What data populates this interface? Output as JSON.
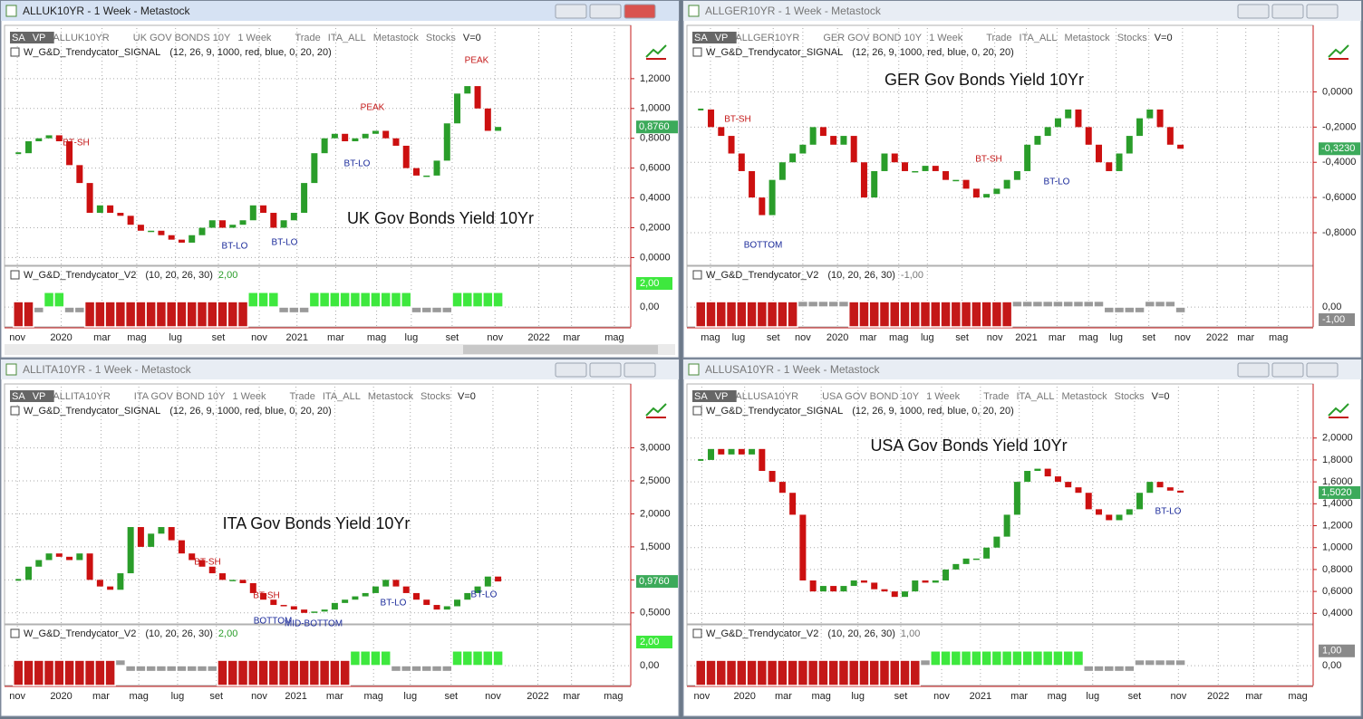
{
  "style": {
    "up": "#2a9d2a",
    "down": "#cc1010",
    "ind_neg": "#c41818",
    "ind_pos": "#3ee83e",
    "ind_mid": "#9a9a9a",
    "price_box": "#3caa5a"
  },
  "windows": [
    {
      "title": "ALLUK10YR - 1 Week - Metastock",
      "active": true,
      "toolbar": [
        "SA",
        "VP",
        "ALLUK10YR",
        "UK GOV BONDS 10Y",
        "1 Week",
        "Trade",
        "ITA_ALL",
        "Metastock",
        "Stocks",
        "V=0"
      ],
      "signal": {
        "name": "W_G&D_Trendycator_SIGNAL",
        "params": "(12, 26, 9, 1000, red, blue, 0, 20, 20)"
      },
      "chart_title": "UK Gov Bonds Yield 10Yr",
      "xlim": [
        -1,
        60
      ],
      "xticks": [
        {
          "value": -0.1,
          "label": "nov"
        },
        {
          "value": 4.2,
          "label": "2020"
        },
        {
          "value": 8.2,
          "label": "mar"
        },
        {
          "value": 11.6,
          "label": "mag"
        },
        {
          "value": 15.4,
          "label": "lug"
        },
        {
          "value": 19.6,
          "label": "set"
        },
        {
          "value": 23.6,
          "label": "nov"
        },
        {
          "value": 27.3,
          "label": "2021"
        },
        {
          "value": 31.1,
          "label": "mar"
        },
        {
          "value": 35.1,
          "label": "mag"
        },
        {
          "value": 38.5,
          "label": "lug"
        },
        {
          "value": 42.5,
          "label": "set"
        },
        {
          "value": 46.7,
          "label": "nov"
        },
        {
          "value": 51.0,
          "label": "2022"
        },
        {
          "value": 54.2,
          "label": "mar"
        },
        {
          "value": 58.4,
          "label": "mag"
        }
      ],
      "ylim": [
        -0.04,
        1.43
      ],
      "yticks": [
        {
          "value": 0,
          "label": "0,0000"
        },
        {
          "value": 0.2,
          "label": "0,2000"
        },
        {
          "value": 0.4,
          "label": "0,4000"
        },
        {
          "value": 0.6,
          "label": "0,6000"
        },
        {
          "value": 0.8,
          "label": "0,8000"
        },
        {
          "value": 1.0,
          "label": "1,0000"
        },
        {
          "value": 1.2,
          "label": "1,2000"
        }
      ],
      "closes": [
        0.7,
        0.78,
        0.8,
        0.82,
        0.78,
        0.62,
        0.5,
        0.3,
        0.35,
        0.3,
        0.28,
        0.22,
        0.18,
        0.18,
        0.15,
        0.12,
        0.1,
        0.15,
        0.2,
        0.25,
        0.2,
        0.22,
        0.25,
        0.35,
        0.3,
        0.2,
        0.25,
        0.3,
        0.5,
        0.7,
        0.8,
        0.83,
        0.78,
        0.8,
        0.83,
        0.85,
        0.8,
        0.75,
        0.6,
        0.55,
        0.55,
        0.65,
        0.9,
        1.1,
        1.15,
        1.0,
        0.85,
        0.876
      ],
      "last": {
        "value": 0.876,
        "label": "0,8760"
      },
      "annotations": [
        {
          "text": "BT-SH",
          "color": "#c41818"
        },
        {
          "text": "PEAK",
          "color": "#c41818"
        },
        {
          "text": "PEAK",
          "color": "#c41818"
        },
        {
          "text": "BT-LO",
          "color": "#1a2a9a"
        },
        {
          "text": "BT-LO",
          "color": "#1a2a9a"
        },
        {
          "text": "BT-LO",
          "color": "#1a2a9a"
        }
      ],
      "indicator": {
        "name": "W_G&D_Trendycator_V2",
        "params": "(10, 20, 26, 30)",
        "last": {
          "value": 2,
          "label": "2,00"
        },
        "last_color": "#3ee83e",
        "ylim": [
          -1.1,
          1.6
        ],
        "yticks": [
          {
            "value": 0,
            "label": "0,00"
          }
        ],
        "values": [
          -1,
          -1,
          -0.4,
          1,
          1,
          -0.4,
          -0.4,
          -1,
          -1,
          -1,
          -1,
          -1,
          -1,
          -1,
          -1,
          -1,
          -1,
          -1,
          -1,
          -1,
          -1,
          -1,
          -1,
          1,
          1,
          1,
          -0.4,
          -0.4,
          -0.4,
          1,
          1,
          1,
          1,
          1,
          1,
          1,
          1,
          1,
          1,
          -0.4,
          -0.4,
          -0.4,
          -0.4,
          1,
          1,
          1,
          1,
          1
        ]
      }
    },
    {
      "title": "ALLGER10YR - 1 Week - Metastock",
      "active": false,
      "toolbar": [
        "SA",
        "VP",
        "ALLGER10YR",
        "GER GOV BOND 10Y",
        "1 Week",
        "Trade",
        "ITA_ALL",
        "Metastock",
        "Stocks",
        "V=0"
      ],
      "signal": {
        "name": "W_G&D_Trendycator_SIGNAL",
        "params": "(12, 26, 9, 1000, red, blue, 0, 20, 20)"
      },
      "chart_title": "GER Gov Bonds Yield 10Yr",
      "xlim": [
        -1,
        60
      ],
      "xticks": [
        {
          "value": 0.95,
          "label": "mag"
        },
        {
          "value": 3.7,
          "label": "lug"
        },
        {
          "value": 7.1,
          "label": "set"
        },
        {
          "value": 10.0,
          "label": "nov"
        },
        {
          "value": 13.4,
          "label": "2020"
        },
        {
          "value": 16.4,
          "label": "mar"
        },
        {
          "value": 19.4,
          "label": "mag"
        },
        {
          "value": 22.2,
          "label": "lug"
        },
        {
          "value": 25.6,
          "label": "set"
        },
        {
          "value": 28.8,
          "label": "nov"
        },
        {
          "value": 31.9,
          "label": "2021"
        },
        {
          "value": 34.9,
          "label": "mar"
        },
        {
          "value": 38.0,
          "label": "mag"
        },
        {
          "value": 40.7,
          "label": "lug"
        },
        {
          "value": 43.9,
          "label": "set"
        },
        {
          "value": 47.2,
          "label": "nov"
        },
        {
          "value": 50.6,
          "label": "2022"
        },
        {
          "value": 53.4,
          "label": "mar"
        },
        {
          "value": 56.6,
          "label": "mag"
        }
      ],
      "ylim": [
        -0.975,
        0.27
      ],
      "yticks": [
        {
          "value": -0.8,
          "label": "-0,8000"
        },
        {
          "value": -0.6,
          "label": "-0,6000"
        },
        {
          "value": -0.4,
          "label": "-0,4000"
        },
        {
          "value": -0.2,
          "label": "-0,2000"
        },
        {
          "value": 0,
          "label": "0,0000"
        }
      ],
      "closes": [
        -0.1,
        -0.2,
        -0.25,
        -0.35,
        -0.45,
        -0.6,
        -0.7,
        -0.5,
        -0.4,
        -0.35,
        -0.3,
        -0.2,
        -0.25,
        -0.3,
        -0.25,
        -0.4,
        -0.6,
        -0.45,
        -0.35,
        -0.4,
        -0.45,
        -0.45,
        -0.42,
        -0.45,
        -0.5,
        -0.5,
        -0.55,
        -0.6,
        -0.58,
        -0.55,
        -0.5,
        -0.45,
        -0.3,
        -0.25,
        -0.2,
        -0.15,
        -0.1,
        -0.2,
        -0.3,
        -0.4,
        -0.45,
        -0.35,
        -0.25,
        -0.15,
        -0.1,
        -0.2,
        -0.3,
        -0.323
      ],
      "last": {
        "value": -0.323,
        "label": "-0,3230"
      },
      "annotations": [
        {
          "text": "BT-SH",
          "color": "#c41818"
        },
        {
          "text": "BT-SH",
          "color": "#c41818"
        },
        {
          "text": "BT-LO",
          "color": "#1a2a9a"
        },
        {
          "text": "BOTTOM",
          "color": "#1a2a9a"
        }
      ],
      "indicator": {
        "name": "W_G&D_Trendycator_V2",
        "params": "(10, 20, 26, 30)",
        "last": {
          "value": -1,
          "label": "-1,00"
        },
        "last_color": "#8a8a8a",
        "ylim": [
          -1.1,
          1.6
        ],
        "yticks": [
          {
            "value": 0,
            "label": "0,00"
          }
        ],
        "values": [
          -1,
          -1,
          -1,
          -1,
          -1,
          -1,
          -1,
          -1,
          -1,
          -1,
          0.4,
          0.4,
          0.4,
          0.4,
          0.4,
          -1,
          -1,
          -1,
          -1,
          -1,
          -1,
          -1,
          -1,
          -1,
          -1,
          -1,
          -1,
          -1,
          -1,
          -1,
          -1,
          0.4,
          0.4,
          0.4,
          0.4,
          0.4,
          0.4,
          0.4,
          0.4,
          0.4,
          -0.4,
          -0.4,
          -0.4,
          -0.4,
          0.4,
          0.4,
          0.4,
          -0.4
        ]
      }
    },
    {
      "title": "ALLITA10YR - 1 Week - Metastock",
      "active": false,
      "toolbar": [
        "SA",
        "VP",
        "ALLITA10YR",
        "ITA GOV BOND 10Y",
        "1 Week",
        "Trade",
        "ITA_ALL",
        "Metastock",
        "Stocks",
        "V=0"
      ],
      "signal": {
        "name": "W_G&D_Trendycator_SIGNAL",
        "params": "(12, 26, 9, 1000, red, blue, 0, 20, 20)"
      },
      "chart_title": "ITA Gov Bonds Yield 10Yr",
      "xlim": [
        -1,
        60
      ],
      "xticks": [
        {
          "value": -0.1,
          "label": "nov"
        },
        {
          "value": 4.2,
          "label": "2020"
        },
        {
          "value": 8.1,
          "label": "mar"
        },
        {
          "value": 11.8,
          "label": "mag"
        },
        {
          "value": 15.6,
          "label": "lug"
        },
        {
          "value": 19.4,
          "label": "set"
        },
        {
          "value": 23.6,
          "label": "nov"
        },
        {
          "value": 27.2,
          "label": "2021"
        },
        {
          "value": 31.0,
          "label": "mar"
        },
        {
          "value": 34.8,
          "label": "mag"
        },
        {
          "value": 38.4,
          "label": "lug"
        },
        {
          "value": 42.4,
          "label": "set"
        },
        {
          "value": 46.5,
          "label": "nov"
        },
        {
          "value": 50.9,
          "label": "2022"
        },
        {
          "value": 54.2,
          "label": "mar"
        },
        {
          "value": 58.3,
          "label": "mag"
        }
      ],
      "ylim": [
        0.36,
        3.68
      ],
      "yticks": [
        {
          "value": 0.5,
          "label": "0,5000"
        },
        {
          "value": 1.0,
          "label": "1,0000"
        },
        {
          "value": 1.5,
          "label": "1,5000"
        },
        {
          "value": 2.0,
          "label": "2,0000"
        },
        {
          "value": 2.5,
          "label": "2,5000"
        },
        {
          "value": 3.0,
          "label": "3,0000"
        }
      ],
      "closes": [
        1.0,
        1.2,
        1.3,
        1.4,
        1.35,
        1.3,
        1.4,
        1.0,
        0.9,
        0.85,
        1.1,
        1.8,
        1.5,
        1.7,
        1.8,
        1.6,
        1.4,
        1.3,
        1.2,
        1.1,
        1.0,
        1.0,
        0.95,
        0.8,
        0.7,
        0.62,
        0.6,
        0.55,
        0.5,
        0.52,
        0.55,
        0.65,
        0.7,
        0.75,
        0.8,
        0.9,
        1.0,
        0.9,
        0.8,
        0.7,
        0.62,
        0.55,
        0.6,
        0.7,
        0.8,
        0.9,
        1.05,
        0.976
      ],
      "last": {
        "value": 0.976,
        "label": "0,9760"
      },
      "annotations": [
        {
          "text": "BT-SH",
          "color": "#c41818"
        },
        {
          "text": "BT-SH",
          "color": "#c41818"
        },
        {
          "text": "BOTTOM",
          "color": "#1a2a9a"
        },
        {
          "text": "MID-BOTTOM",
          "color": "#1a2a9a"
        },
        {
          "text": "BT-LO",
          "color": "#1a2a9a"
        },
        {
          "text": "BT-LO",
          "color": "#1a2a9a"
        }
      ],
      "indicator": {
        "name": "W_G&D_Trendycator_V2",
        "params": "(10, 20, 26, 30)",
        "last": {
          "value": 2,
          "label": "2,00"
        },
        "last_color": "#3ee83e",
        "ylim": [
          -1.1,
          1.6
        ],
        "yticks": [
          {
            "value": 0,
            "label": "0,00"
          }
        ],
        "values": [
          -1,
          -1,
          -1,
          -1,
          -1,
          -1,
          -1,
          -1,
          -1,
          -1,
          0.4,
          -0.4,
          -0.4,
          -0.4,
          -0.4,
          -0.4,
          -0.4,
          -0.4,
          -0.4,
          -0.4,
          -1,
          -1,
          -1,
          -1,
          -1,
          -1,
          -1,
          -1,
          -1,
          -1,
          -1,
          -1,
          -1,
          1,
          1,
          1,
          1,
          -0.4,
          -0.4,
          -0.4,
          -0.4,
          -0.4,
          -0.4,
          1,
          1,
          1,
          1,
          1
        ]
      }
    },
    {
      "title": "ALLUSA10YR - 1 Week - Metastock",
      "active": false,
      "toolbar": [
        "SA",
        "VP",
        "ALLUSA10YR",
        "USA GOV BOND 10Y",
        "1 Week",
        "Trade",
        "ITA_ALL",
        "Metastock",
        "Stocks",
        "V=0"
      ],
      "signal": {
        "name": "W_G&D_Trendycator_SIGNAL",
        "params": "(12, 26, 9, 1000, red, blue, 0, 20, 20)"
      },
      "chart_title": "USA Gov Bonds Yield 10Yr",
      "xlim": [
        -1,
        60
      ],
      "xticks": [
        {
          "value": 0.1,
          "label": "nov"
        },
        {
          "value": 4.3,
          "label": "2020"
        },
        {
          "value": 8.1,
          "label": "mar"
        },
        {
          "value": 11.8,
          "label": "mag"
        },
        {
          "value": 15.4,
          "label": "lug"
        },
        {
          "value": 19.6,
          "label": "set"
        },
        {
          "value": 23.6,
          "label": "nov"
        },
        {
          "value": 27.4,
          "label": "2021"
        },
        {
          "value": 31.2,
          "label": "mar"
        },
        {
          "value": 34.9,
          "label": "mag"
        },
        {
          "value": 38.4,
          "label": "lug"
        },
        {
          "value": 42.5,
          "label": "set"
        },
        {
          "value": 46.8,
          "label": "nov"
        },
        {
          "value": 50.7,
          "label": "2022"
        },
        {
          "value": 54.2,
          "label": "mar"
        },
        {
          "value": 58.5,
          "label": "mag"
        }
      ],
      "ylim": [
        0.32,
        2.32
      ],
      "yticks": [
        {
          "value": 0.4,
          "label": "0,4000"
        },
        {
          "value": 0.6,
          "label": "0,6000"
        },
        {
          "value": 0.8,
          "label": "0,8000"
        },
        {
          "value": 1.0,
          "label": "1,0000"
        },
        {
          "value": 1.2,
          "label": "1,2000"
        },
        {
          "value": 1.4,
          "label": "1,4000"
        },
        {
          "value": 1.6,
          "label": "1,6000"
        },
        {
          "value": 1.8,
          "label": "1,8000"
        },
        {
          "value": 2.0,
          "label": "2,0000"
        }
      ],
      "closes": [
        1.8,
        1.9,
        1.85,
        1.9,
        1.85,
        1.9,
        1.7,
        1.6,
        1.5,
        1.3,
        0.7,
        0.6,
        0.65,
        0.6,
        0.65,
        0.7,
        0.68,
        0.62,
        0.6,
        0.55,
        0.6,
        0.7,
        0.68,
        0.7,
        0.8,
        0.85,
        0.9,
        0.9,
        1.0,
        1.1,
        1.3,
        1.6,
        1.7,
        1.72,
        1.65,
        1.6,
        1.55,
        1.5,
        1.35,
        1.3,
        1.25,
        1.3,
        1.35,
        1.5,
        1.6,
        1.55,
        1.52,
        1.502
      ],
      "last": {
        "value": 1.502,
        "label": "1,5020"
      },
      "annotations": [
        {
          "text": "BT-LO",
          "color": "#1a2a9a"
        }
      ],
      "indicator": {
        "name": "W_G&D_Trendycator_V2",
        "params": "(10, 20, 26, 30)",
        "last": {
          "value": 1,
          "label": "1,00"
        },
        "last_color": "#8a8a8a",
        "ylim": [
          -1.1,
          1.6
        ],
        "yticks": [
          {
            "value": 0,
            "label": "0,00"
          }
        ],
        "values": [
          -1,
          -1,
          -1,
          -1,
          -1,
          -1,
          -1,
          -1,
          -1,
          -1,
          -1,
          -1,
          -1,
          -1,
          -1,
          -1,
          -1,
          -1,
          -1,
          -1,
          -1,
          -1,
          0.4,
          1,
          1,
          1,
          1,
          1,
          1,
          1,
          1,
          1,
          1,
          1,
          1,
          1,
          1,
          1,
          -0.4,
          -0.4,
          -0.4,
          -0.4,
          -0.4,
          0.4,
          0.4,
          0.4,
          0.4,
          0.4
        ]
      }
    }
  ]
}
